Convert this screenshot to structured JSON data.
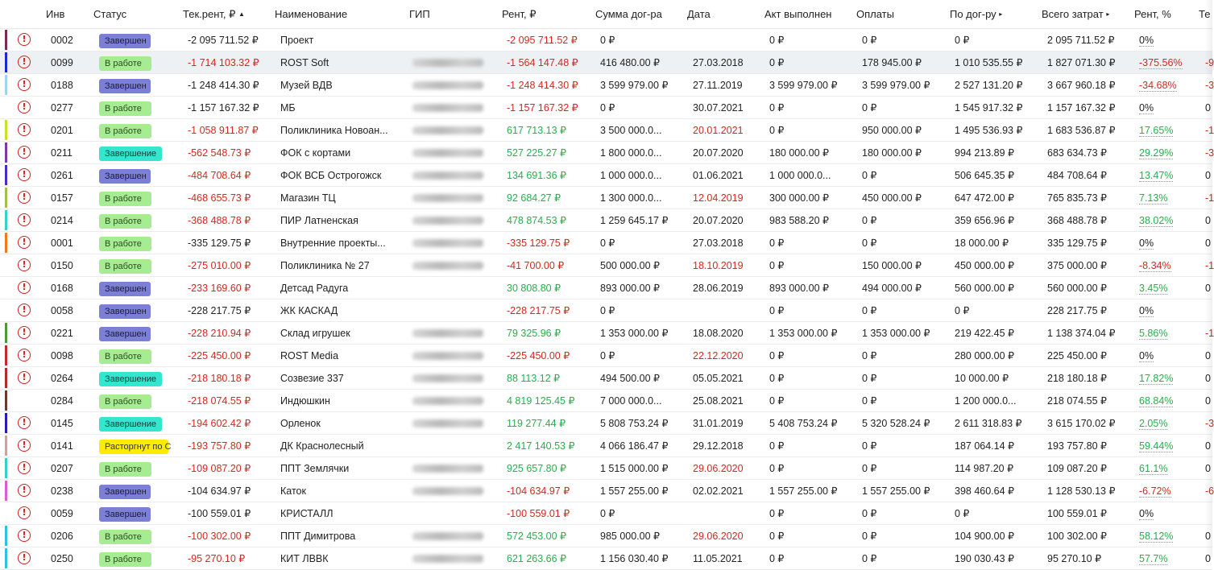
{
  "header": {
    "inv": "Инв",
    "status": "Статус",
    "cur_rent": "Тек.рент, ₽",
    "cur_rent_sort": "▲",
    "name": "Наименование",
    "gip": "ГИП",
    "rent": "Рент, ₽",
    "contract_sum": "Сумма дог-ра",
    "date": "Дата",
    "act": "Акт выполнен",
    "payments": "Оплаты",
    "by_contract": "По дог-ру",
    "by_contract_arrow": "▸",
    "total_costs": "Всего затрат",
    "total_costs_arrow": "▸",
    "rent_pct": "Рент, %",
    "last": "Те"
  },
  "colors": {
    "negative": "#d7261e",
    "positive": "#22b14c",
    "status_done": "#7b7fd6",
    "status_work": "#a6ec92",
    "status_finish": "#33e6cf",
    "status_broken": "#ffeb00"
  },
  "rows": [
    {
      "bar": "#7a2a5c",
      "alert": true,
      "inv": "0002",
      "status": "Завершен",
      "st": "done",
      "cur": "-2 095 711.52 ₽",
      "curc": "",
      "name": "Проект",
      "gip": false,
      "rent": "-2 095 711.52 ₽",
      "rentc": "neg",
      "sum": "0 ₽",
      "date": "",
      "datec": "",
      "act": "0 ₽",
      "pay": "0 ₽",
      "byc": "0 ₽",
      "total": "2 095 711.52 ₽",
      "pct": "0%",
      "pctc": "",
      "last": ""
    },
    {
      "bar": "#1a2ad1",
      "alert": true,
      "inv": "0099",
      "status": "В работе",
      "st": "work",
      "cur": "-1 714 103.32 ₽",
      "curc": "neg",
      "name": "ROST Soft",
      "gip": true,
      "rent": "-1 564 147.48 ₽",
      "rentc": "neg",
      "sum": "416 480.00 ₽",
      "date": "27.03.2018",
      "datec": "",
      "act": "0 ₽",
      "pay": "178 945.00 ₽",
      "byc": "1 010 535.55 ₽",
      "total": "1 827 071.30 ₽",
      "pct": "-375.56%",
      "pctc": "neg",
      "last": "-9",
      "hl": true
    },
    {
      "bar": "#9fd3f0",
      "alert": true,
      "inv": "0188",
      "status": "Завершен",
      "st": "done",
      "cur": "-1 248 414.30 ₽",
      "curc": "",
      "name": "Музей ВДВ",
      "gip": true,
      "rent": "-1 248 414.30 ₽",
      "rentc": "neg",
      "sum": "3 599 979.00 ₽",
      "date": "27.11.2019",
      "datec": "",
      "act": "3 599 979.00 ₽",
      "pay": "3 599 979.00 ₽",
      "byc": "2 527 131.20 ₽",
      "total": "3 667 960.18 ₽",
      "pct": "-34.68%",
      "pctc": "neg",
      "last": "-3"
    },
    {
      "bar": "",
      "alert": true,
      "inv": "0277",
      "status": "В работе",
      "st": "work",
      "cur": "-1 157 167.32 ₽",
      "curc": "",
      "name": "МБ",
      "gip": true,
      "rent": "-1 157 167.32 ₽",
      "rentc": "neg",
      "sum": "0 ₽",
      "date": "30.07.2021",
      "datec": "",
      "act": "0 ₽",
      "pay": "0 ₽",
      "byc": "1 545 917.32 ₽",
      "total": "1 157 167.32 ₽",
      "pct": "0%",
      "pctc": "",
      "last": "0"
    },
    {
      "bar": "#c9e02c",
      "alert": true,
      "inv": "0201",
      "status": "В работе",
      "st": "work",
      "cur": "-1 058 911.87 ₽",
      "curc": "neg",
      "name": "Поликлиника Новоан...",
      "gip": true,
      "rent": "617 713.13 ₽",
      "rentc": "pos",
      "sum": "3 500 000.0...",
      "date": "20.01.2021",
      "datec": "neg",
      "act": "0 ₽",
      "pay": "950 000.00 ₽",
      "byc": "1 495 536.93 ₽",
      "total": "1 683 536.87 ₽",
      "pct": "17.65%",
      "pctc": "pos",
      "last": "-1"
    },
    {
      "bar": "#7a3aa0",
      "alert": true,
      "inv": "0211",
      "status": "Завершение",
      "st": "finish",
      "cur": "-562 548.73 ₽",
      "curc": "neg",
      "name": "ФОК с кортами",
      "gip": true,
      "rent": "527 225.27 ₽",
      "rentc": "pos",
      "sum": "1 800 000.0...",
      "date": "20.07.2020",
      "datec": "",
      "act": "180 000.00 ₽",
      "pay": "180 000.00 ₽",
      "byc": "994 213.89 ₽",
      "total": "683 634.73 ₽",
      "pct": "29.29%",
      "pctc": "pos",
      "last": "-3"
    },
    {
      "bar": "#4a2cc4",
      "alert": true,
      "inv": "0261",
      "status": "Завершен",
      "st": "done",
      "cur": "-484 708.64 ₽",
      "curc": "neg",
      "name": "ФОК ВСБ Острогожск",
      "gip": true,
      "rent": "134 691.36 ₽",
      "rentc": "pos",
      "sum": "1 000 000.0...",
      "date": "01.06.2021",
      "datec": "",
      "act": "1 000 000.0...",
      "pay": "0 ₽",
      "byc": "506 645.35 ₽",
      "total": "484 708.64 ₽",
      "pct": "13.47%",
      "pctc": "pos",
      "last": "0"
    },
    {
      "bar": "#9cc24a",
      "alert": true,
      "inv": "0157",
      "status": "В работе",
      "st": "work",
      "cur": "-468 655.73 ₽",
      "curc": "neg",
      "name": "Магазин ТЦ",
      "gip": true,
      "rent": "92 684.27 ₽",
      "rentc": "pos",
      "sum": "1 300 000.0...",
      "date": "12.04.2019",
      "datec": "neg",
      "act": "300 000.00 ₽",
      "pay": "450 000.00 ₽",
      "byc": "647 472.00 ₽",
      "total": "765 835.73 ₽",
      "pct": "7.13%",
      "pctc": "pos",
      "last": "-1"
    },
    {
      "bar": "#35d0c8",
      "alert": true,
      "inv": "0214",
      "status": "В работе",
      "st": "work",
      "cur": "-368 488.78 ₽",
      "curc": "neg",
      "name": "ПИР Латненская",
      "gip": true,
      "rent": "478 874.53 ₽",
      "rentc": "pos",
      "sum": "1 259 645.17 ₽",
      "date": "20.07.2020",
      "datec": "",
      "act": "983 588.20 ₽",
      "pay": "0 ₽",
      "byc": "359 656.96 ₽",
      "total": "368 488.78 ₽",
      "pct": "38.02%",
      "pctc": "pos",
      "last": "0"
    },
    {
      "bar": "#f07a1a",
      "alert": true,
      "inv": "0001",
      "status": "В работе",
      "st": "work",
      "cur": "-335 129.75 ₽",
      "curc": "",
      "name": "Внутренние проекты...",
      "gip": true,
      "rent": "-335 129.75 ₽",
      "rentc": "neg",
      "sum": "0 ₽",
      "date": "27.03.2018",
      "datec": "",
      "act": "0 ₽",
      "pay": "0 ₽",
      "byc": "18 000.00 ₽",
      "total": "335 129.75 ₽",
      "pct": "0%",
      "pctc": "",
      "last": "0"
    },
    {
      "bar": "",
      "alert": true,
      "inv": "0150",
      "status": "В работе",
      "st": "work",
      "cur": "-275 010.00 ₽",
      "curc": "neg",
      "name": "Поликлиника № 27",
      "gip": true,
      "rent": "-41 700.00 ₽",
      "rentc": "neg",
      "sum": "500 000.00 ₽",
      "date": "18.10.2019",
      "datec": "neg",
      "act": "0 ₽",
      "pay": "150 000.00 ₽",
      "byc": "450 000.00 ₽",
      "total": "375 000.00 ₽",
      "pct": "-8.34%",
      "pctc": "neg",
      "last": "-1"
    },
    {
      "bar": "",
      "alert": true,
      "inv": "0168",
      "status": "Завершен",
      "st": "done",
      "cur": "-233 169.60 ₽",
      "curc": "neg",
      "name": "Детсад Радуга",
      "gip": false,
      "rent": "30 808.80 ₽",
      "rentc": "pos",
      "sum": "893 000.00 ₽",
      "date": "28.06.2019",
      "datec": "",
      "act": "893 000.00 ₽",
      "pay": "494 000.00 ₽",
      "byc": "560 000.00 ₽",
      "total": "560 000.00 ₽",
      "pct": "3.45%",
      "pctc": "pos",
      "last": "0"
    },
    {
      "bar": "",
      "alert": true,
      "inv": "0058",
      "status": "Завершен",
      "st": "done",
      "cur": "-228 217.75 ₽",
      "curc": "",
      "name": "ЖК КАСКАД",
      "gip": false,
      "rent": "-228 217.75 ₽",
      "rentc": "neg",
      "sum": "0 ₽",
      "date": "",
      "datec": "",
      "act": "0 ₽",
      "pay": "0 ₽",
      "byc": "0 ₽",
      "total": "228 217.75 ₽",
      "pct": "0%",
      "pctc": "",
      "last": ""
    },
    {
      "bar": "#4e9a3a",
      "alert": true,
      "inv": "0221",
      "status": "Завершен",
      "st": "done",
      "cur": "-228 210.94 ₽",
      "curc": "neg",
      "name": "Склад игрушек",
      "gip": true,
      "rent": "79 325.96 ₽",
      "rentc": "pos",
      "sum": "1 353 000.00 ₽",
      "date": "18.08.2020",
      "datec": "",
      "act": "1 353 000.00 ₽",
      "pay": "1 353 000.00 ₽",
      "byc": "219 422.45 ₽",
      "total": "1 138 374.04 ₽",
      "pct": "5.86%",
      "pctc": "pos",
      "last": "-1"
    },
    {
      "bar": "#c22a2a",
      "alert": true,
      "inv": "0098",
      "status": "В работе",
      "st": "work",
      "cur": "-225 450.00 ₽",
      "curc": "neg",
      "name": "ROST Media",
      "gip": true,
      "rent": "-225 450.00 ₽",
      "rentc": "neg",
      "sum": "0 ₽",
      "date": "22.12.2020",
      "datec": "neg",
      "act": "0 ₽",
      "pay": "0 ₽",
      "byc": "280 000.00 ₽",
      "total": "225 450.00 ₽",
      "pct": "0%",
      "pctc": "",
      "last": "0"
    },
    {
      "bar": "#b52a2a",
      "alert": true,
      "inv": "0264",
      "status": "Завершение",
      "st": "finish",
      "cur": "-218 180.18 ₽",
      "curc": "neg",
      "name": "Созвезие 337",
      "gip": true,
      "rent": "88 113.12 ₽",
      "rentc": "pos",
      "sum": "494 500.00 ₽",
      "date": "05.05.2021",
      "datec": "",
      "act": "0 ₽",
      "pay": "0 ₽",
      "byc": "10 000.00 ₽",
      "total": "218 180.18 ₽",
      "pct": "17.82%",
      "pctc": "pos",
      "last": "0"
    },
    {
      "bar": "#6a3a2a",
      "alert": false,
      "inv": "0284",
      "status": "В работе",
      "st": "work",
      "cur": "-218 074.55 ₽",
      "curc": "neg",
      "name": "Индюшкин",
      "gip": true,
      "rent": "4 819 125.45 ₽",
      "rentc": "pos",
      "sum": "7 000 000.0...",
      "date": "25.08.2021",
      "datec": "",
      "act": "0 ₽",
      "pay": "0 ₽",
      "byc": "1 200 000.0...",
      "total": "218 074.55 ₽",
      "pct": "68.84%",
      "pctc": "pos",
      "last": "0"
    },
    {
      "bar": "#2a1ab8",
      "alert": true,
      "inv": "0145",
      "status": "Завершение",
      "st": "finish",
      "cur": "-194 602.42 ₽",
      "curc": "neg",
      "name": "Орленок",
      "gip": true,
      "rent": "119 277.44 ₽",
      "rentc": "pos",
      "sum": "5 808 753.24 ₽",
      "date": "31.01.2019",
      "datec": "",
      "act": "5 408 753.24 ₽",
      "pay": "5 320 528.24 ₽",
      "byc": "2 611 318.83 ₽",
      "total": "3 615 170.02 ₽",
      "pct": "2.05%",
      "pctc": "pos",
      "last": "-3"
    },
    {
      "bar": "#c9a4a0",
      "alert": true,
      "inv": "0141",
      "status": "Расторгнут по С",
      "st": "broken",
      "cur": "-193 757.80 ₽",
      "curc": "neg",
      "name": "ДК Краснолесный",
      "gip": false,
      "rent": "2 417 140.53 ₽",
      "rentc": "pos",
      "sum": "4 066 186.47 ₽",
      "date": "29.12.2018",
      "datec": "",
      "act": "0 ₽",
      "pay": "0 ₽",
      "byc": "187 064.14 ₽",
      "total": "193 757.80 ₽",
      "pct": "59.44%",
      "pctc": "pos",
      "last": "0"
    },
    {
      "bar": "#35d0c8",
      "alert": true,
      "inv": "0207",
      "status": "В работе",
      "st": "work",
      "cur": "-109 087.20 ₽",
      "curc": "neg",
      "name": "ППТ Землячки",
      "gip": true,
      "rent": "925 657.80 ₽",
      "rentc": "pos",
      "sum": "1 515 000.00 ₽",
      "date": "29.06.2020",
      "datec": "neg",
      "act": "0 ₽",
      "pay": "0 ₽",
      "byc": "114 987.20 ₽",
      "total": "109 087.20 ₽",
      "pct": "61.1%",
      "pctc": "pos",
      "last": "0"
    },
    {
      "bar": "#e05ad0",
      "alert": true,
      "inv": "0238",
      "status": "Завершен",
      "st": "done",
      "cur": "-104 634.97 ₽",
      "curc": "",
      "name": "Каток",
      "gip": true,
      "rent": "-104 634.97 ₽",
      "rentc": "neg",
      "sum": "1 557 255.00 ₽",
      "date": "02.02.2021",
      "datec": "",
      "act": "1 557 255.00 ₽",
      "pay": "1 557 255.00 ₽",
      "byc": "398 460.64 ₽",
      "total": "1 128 530.13 ₽",
      "pct": "-6.72%",
      "pctc": "neg",
      "last": "-6"
    },
    {
      "bar": "",
      "alert": true,
      "inv": "0059",
      "status": "Завершен",
      "st": "done",
      "cur": "-100 559.01 ₽",
      "curc": "",
      "name": "КРИСТАЛЛ",
      "gip": false,
      "rent": "-100 559.01 ₽",
      "rentc": "neg",
      "sum": "0 ₽",
      "date": "",
      "datec": "",
      "act": "0 ₽",
      "pay": "0 ₽",
      "byc": "0 ₽",
      "total": "100 559.01 ₽",
      "pct": "0%",
      "pctc": "",
      "last": ""
    },
    {
      "bar": "#35c0e0",
      "alert": true,
      "inv": "0206",
      "status": "В работе",
      "st": "work",
      "cur": "-100 302.00 ₽",
      "curc": "neg",
      "name": "ППТ Димитрова",
      "gip": true,
      "rent": "572 453.00 ₽",
      "rentc": "pos",
      "sum": "985 000.00 ₽",
      "date": "29.06.2020",
      "datec": "neg",
      "act": "0 ₽",
      "pay": "0 ₽",
      "byc": "104 900.00 ₽",
      "total": "100 302.00 ₽",
      "pct": "58.12%",
      "pctc": "pos",
      "last": "0"
    },
    {
      "bar": "#35c0e0",
      "alert": true,
      "inv": "0250",
      "status": "В работе",
      "st": "work",
      "cur": "-95 270.10 ₽",
      "curc": "neg",
      "name": "КИТ ЛВВК",
      "gip": true,
      "rent": "621 263.66 ₽",
      "rentc": "pos",
      "sum": "1 156 030.40 ₽",
      "date": "11.05.2021",
      "datec": "",
      "act": "0 ₽",
      "pay": "0 ₽",
      "byc": "190 030.43 ₽",
      "total": "95 270.10 ₽",
      "pct": "57.7%",
      "pctc": "pos",
      "last": "0"
    }
  ]
}
